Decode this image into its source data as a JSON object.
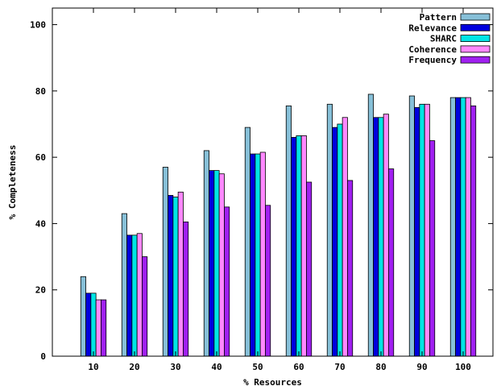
{
  "chart_data": {
    "type": "bar",
    "title": "",
    "xlabel": "% Resources",
    "ylabel": "% Completeness",
    "categories": [
      "10",
      "20",
      "30",
      "40",
      "50",
      "60",
      "70",
      "80",
      "90",
      "100"
    ],
    "ylim": [
      0,
      105
    ],
    "yticks": [
      0,
      20,
      40,
      60,
      80,
      100
    ],
    "grid": false,
    "legend_position": "top-right",
    "series": [
      {
        "name": "Pattern",
        "color": "#87c0d8",
        "values": [
          24,
          43,
          57,
          62,
          69,
          75.5,
          76,
          79,
          78.5,
          78
        ]
      },
      {
        "name": "Relevance",
        "color": "#0000dd",
        "values": [
          19,
          36.5,
          48.5,
          56,
          61,
          66,
          69,
          72,
          75,
          78
        ]
      },
      {
        "name": "SHARC",
        "color": "#00e5e5",
        "values": [
          19,
          36.5,
          48,
          56,
          61,
          66.5,
          70,
          72,
          76,
          78
        ]
      },
      {
        "name": "Coherence",
        "color": "#ff88ff",
        "values": [
          17,
          37,
          49.5,
          55,
          61.5,
          66.5,
          72,
          73,
          76,
          78
        ]
      },
      {
        "name": "Frequency",
        "color": "#a020f0",
        "values": [
          17,
          30,
          40.5,
          45,
          45.5,
          52.5,
          53,
          56.5,
          65,
          75.5
        ]
      }
    ]
  }
}
